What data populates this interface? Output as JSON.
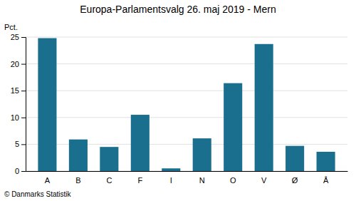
{
  "chart_data": {
    "type": "bar",
    "title": "Europa-Parlamentsvalg 26. maj 2019 - Mern",
    "ylabel": "Pct.",
    "annotations": [
      "© Danmarks Statistik"
    ],
    "categories": [
      "A",
      "B",
      "C",
      "F",
      "I",
      "N",
      "O",
      "V",
      "Ø",
      "Å"
    ],
    "values": [
      24.8,
      5.9,
      4.5,
      10.5,
      0.5,
      6.1,
      16.4,
      23.7,
      4.7,
      3.6
    ],
    "color": "#1a6e8e",
    "ylim": [
      0,
      25
    ],
    "yticks": [
      0,
      5,
      10,
      15,
      20,
      25
    ],
    "grid": true
  }
}
